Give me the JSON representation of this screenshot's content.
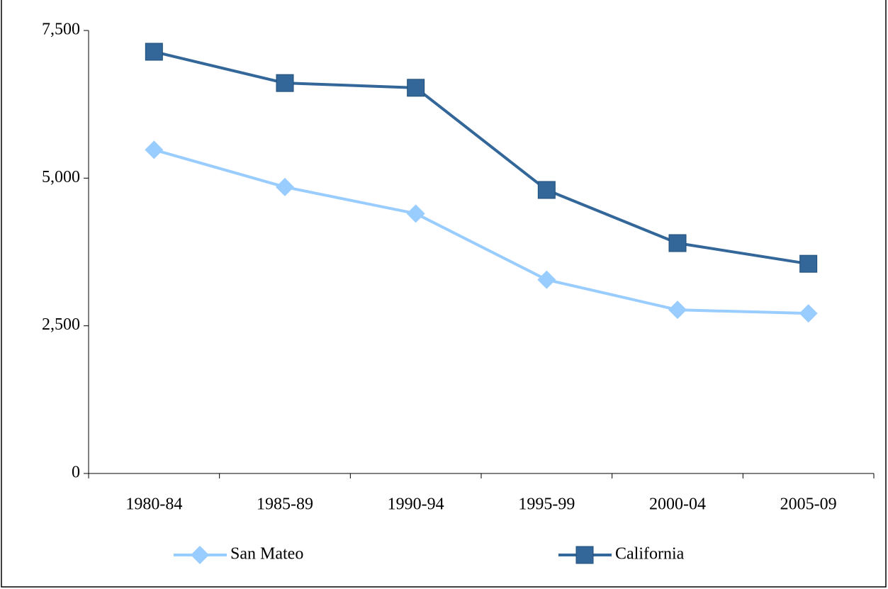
{
  "chart_data": {
    "type": "line",
    "categories": [
      "1980-84",
      "1985-89",
      "1990-94",
      "1995-99",
      "2000-04",
      "2005-09"
    ],
    "series": [
      {
        "name": "San Mateo",
        "color": "#99ccff",
        "marker": "diamond",
        "values": [
          5480,
          4850,
          4400,
          3280,
          2770,
          2710
        ]
      },
      {
        "name": "California",
        "color": "#336699",
        "marker": "square",
        "values": [
          7140,
          6610,
          6530,
          4800,
          3900,
          3550
        ]
      }
    ],
    "ylim": [
      0,
      7500
    ],
    "yticks": [
      0,
      {
        "value": 2500,
        "label": "2,500"
      },
      {
        "value": 5000,
        "label": "5,000"
      },
      {
        "value": 7500,
        "label": "7,500"
      }
    ],
    "grid": false,
    "legend": "bottom"
  }
}
